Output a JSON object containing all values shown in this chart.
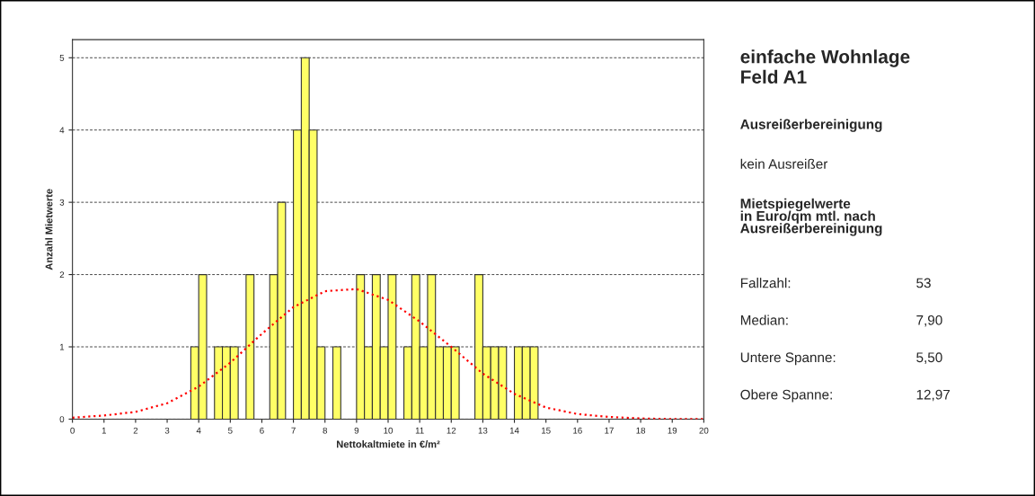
{
  "chart_data": {
    "type": "histogram",
    "title": "einfache Wohnlage\nFeld A1",
    "xlabel": "Nettokaltmiete in €/m²",
    "ylabel": "Anzahl Mietwerte",
    "bins": [
      3.75,
      4.0,
      4.25,
      4.5,
      4.75,
      5.0,
      5.25,
      5.5,
      5.75,
      6.0,
      6.25,
      6.5,
      6.75,
      7.0,
      7.25,
      7.5,
      7.75,
      8.0,
      8.25,
      8.5,
      8.75,
      9.0,
      9.25,
      9.5,
      9.75,
      10.0,
      10.25,
      10.5,
      10.75,
      11.0,
      11.25,
      11.5,
      11.75,
      12.0,
      12.25,
      12.5,
      12.75,
      13.0,
      13.25,
      13.5,
      13.75,
      14.0,
      14.25,
      14.5,
      14.75
    ],
    "values": [
      1,
      2,
      0,
      1,
      1,
      1,
      0,
      2,
      0,
      0,
      2,
      3,
      0,
      4,
      5,
      4,
      1,
      0,
      1,
      0,
      0,
      2,
      1,
      2,
      1,
      2,
      0,
      1,
      2,
      1,
      2,
      1,
      1,
      1,
      0,
      0,
      2,
      1,
      1,
      1,
      0,
      1,
      1,
      1
    ],
    "color": "#ffff66",
    "series": [
      {
        "type": "line",
        "color": "#ff0000",
        "line_style": "dotted",
        "x": [
          0,
          1,
          2,
          3,
          4,
          5,
          6,
          7,
          8,
          9,
          10,
          11,
          12,
          13,
          14,
          15,
          16,
          17,
          18,
          19,
          20
        ],
        "values": [
          0.02,
          0.05,
          0.1,
          0.22,
          0.45,
          0.78,
          1.18,
          1.55,
          1.77,
          1.8,
          1.65,
          1.35,
          1.0,
          0.63,
          0.35,
          0.16,
          0.07,
          0.03,
          0.01,
          0.0,
          0.0
        ]
      }
    ],
    "xlim": [
      0,
      20
    ],
    "xticks": [
      0,
      1,
      2,
      3,
      4,
      5,
      6,
      7,
      8,
      9,
      10,
      11,
      12,
      13,
      14,
      15,
      16,
      17,
      18,
      19,
      20
    ],
    "ylim": [
      0,
      5.25
    ],
    "yticks": [
      0,
      1,
      2,
      3,
      4,
      5
    ],
    "grid": "y",
    "annotations": [
      "Ausreißerbereinigung",
      "kein Ausreißer",
      "Mietspiegelwerte\nin Euro/qm mtl. nach\nAusreißerbereinigung",
      "Fallzahl:",
      "53",
      "Median:",
      "7,90",
      "Untere Spanne:",
      "5,50",
      "Obere Spanne:",
      "12,97"
    ]
  }
}
